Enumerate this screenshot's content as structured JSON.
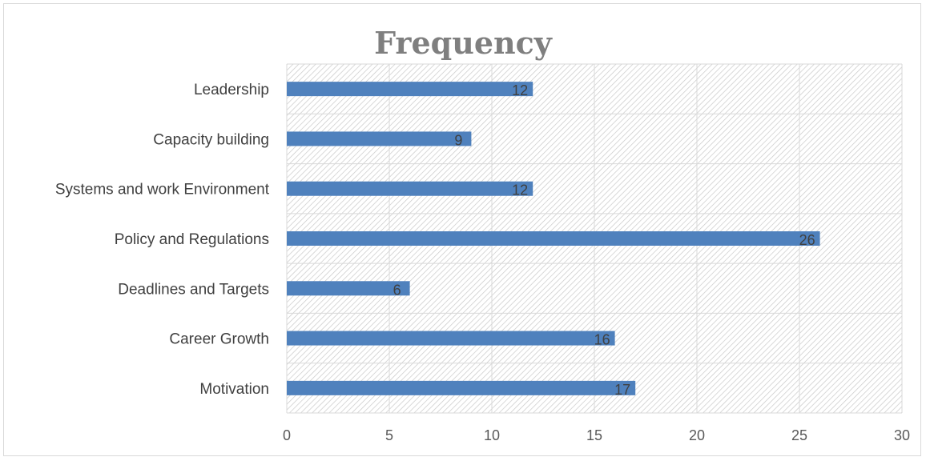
{
  "chart_data": {
    "type": "bar",
    "orientation": "horizontal",
    "title": "Frequency",
    "categories": [
      "Leadership",
      "Capacity building",
      "Systems and work  Environment",
      "Policy and Regulations",
      "Deadlines and Targets",
      "Career Growth",
      "Motivation"
    ],
    "values": [
      12,
      9,
      12,
      26,
      6,
      16,
      17
    ],
    "xlim": [
      0,
      30
    ],
    "xticks": [
      0,
      5,
      10,
      15,
      20,
      25,
      30
    ],
    "bar_color": "#4f81bd",
    "grid": true,
    "data_labels": true,
    "legend": "none"
  }
}
